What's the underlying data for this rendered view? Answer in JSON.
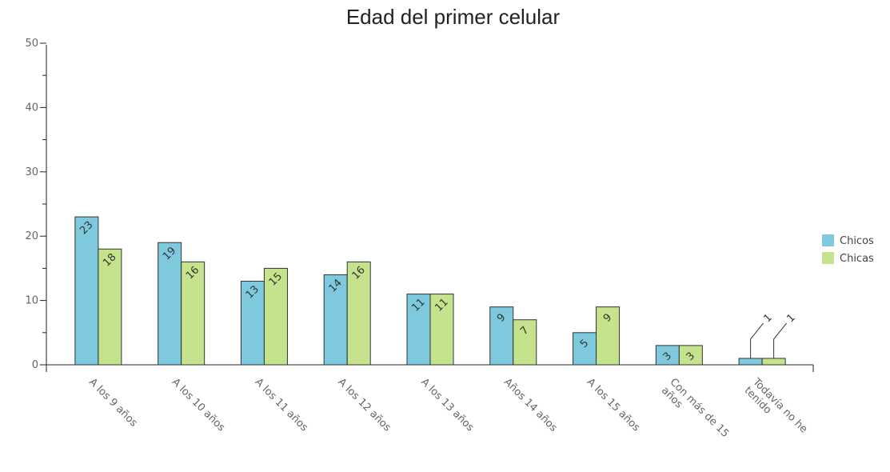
{
  "chart_data": {
    "type": "bar",
    "title": "Edad del primer celular",
    "xlabel": "",
    "ylabel": "",
    "ylim": [
      0,
      50
    ],
    "yticks": [
      0,
      10,
      20,
      30,
      40,
      50
    ],
    "categories": [
      "A los 9 años",
      "A los 10 años",
      "A los 11 años",
      "A los 12 años",
      "A los 13 años",
      "Años 14 años",
      "A los 15 años",
      [
        "Con más de 15",
        "años"
      ],
      [
        "Todavía no he",
        "tenido"
      ]
    ],
    "series": [
      {
        "name": "Chicos",
        "color": "#7ec9dd",
        "values": [
          23,
          19,
          13,
          14,
          11,
          9,
          5,
          3,
          1
        ]
      },
      {
        "name": "Chicas",
        "color": "#c5e28c",
        "values": [
          18,
          16,
          15,
          16,
          11,
          7,
          9,
          3,
          1
        ]
      }
    ],
    "grid": false,
    "legend": "right",
    "data_labels": true
  }
}
